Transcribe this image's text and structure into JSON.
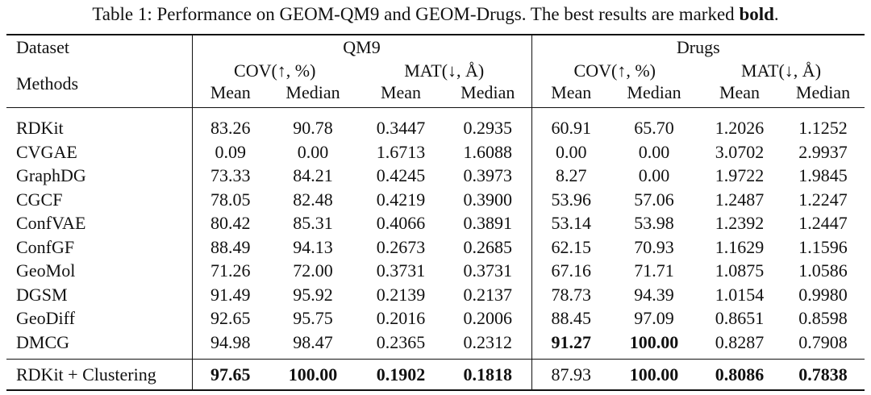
{
  "caption": {
    "prefix": "Table 1: Performance on GEOM-QM9 and GEOM-Drugs. The best results are marked ",
    "bold_word": "bold",
    "suffix": "."
  },
  "header": {
    "dataset_label": "Dataset",
    "methods_label": "Methods",
    "qm9": "QM9",
    "drugs": "Drugs",
    "cov": "COV(↑, %)",
    "mat": "MAT(↓, Å)",
    "mean": "Mean",
    "median": "Median"
  },
  "rows": [
    {
      "method": "RDKit",
      "v": [
        "83.26",
        "90.78",
        "0.3447",
        "0.2935",
        "60.91",
        "65.70",
        "1.2026",
        "1.1252"
      ],
      "bold": []
    },
    {
      "method": "CVGAE",
      "v": [
        "0.09",
        "0.00",
        "1.6713",
        "1.6088",
        "0.00",
        "0.00",
        "3.0702",
        "2.9937"
      ],
      "bold": []
    },
    {
      "method": "GraphDG",
      "v": [
        "73.33",
        "84.21",
        "0.4245",
        "0.3973",
        "8.27",
        "0.00",
        "1.9722",
        "1.9845"
      ],
      "bold": []
    },
    {
      "method": "CGCF",
      "v": [
        "78.05",
        "82.48",
        "0.4219",
        "0.3900",
        "53.96",
        "57.06",
        "1.2487",
        "1.2247"
      ],
      "bold": []
    },
    {
      "method": "ConfVAE",
      "v": [
        "80.42",
        "85.31",
        "0.4066",
        "0.3891",
        "53.14",
        "53.98",
        "1.2392",
        "1.2447"
      ],
      "bold": []
    },
    {
      "method": "ConfGF",
      "v": [
        "88.49",
        "94.13",
        "0.2673",
        "0.2685",
        "62.15",
        "70.93",
        "1.1629",
        "1.1596"
      ],
      "bold": []
    },
    {
      "method": "GeoMol",
      "v": [
        "71.26",
        "72.00",
        "0.3731",
        "0.3731",
        "67.16",
        "71.71",
        "1.0875",
        "1.0586"
      ],
      "bold": []
    },
    {
      "method": "DGSM",
      "v": [
        "91.49",
        "95.92",
        "0.2139",
        "0.2137",
        "78.73",
        "94.39",
        "1.0154",
        "0.9980"
      ],
      "bold": []
    },
    {
      "method": "GeoDiff",
      "v": [
        "92.65",
        "95.75",
        "0.2016",
        "0.2006",
        "88.45",
        "97.09",
        "0.8651",
        "0.8598"
      ],
      "bold": []
    },
    {
      "method": "DMCG",
      "v": [
        "94.98",
        "98.47",
        "0.2365",
        "0.2312",
        "91.27",
        "100.00",
        "0.8287",
        "0.7908"
      ],
      "bold": [
        4,
        5
      ]
    }
  ],
  "ours": {
    "method": "RDKit + Clustering",
    "v": [
      "97.65",
      "100.00",
      "0.1902",
      "0.1818",
      "87.93",
      "100.00",
      "0.8086",
      "0.7838"
    ],
    "bold": [
      0,
      1,
      2,
      3,
      5,
      6,
      7
    ]
  }
}
